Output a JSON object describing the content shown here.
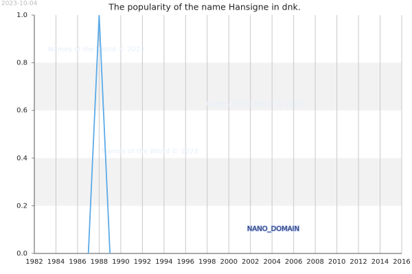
{
  "chart_data": {
    "type": "line",
    "title": "The popularity of the name Hansigne in dnk.",
    "date": "2023-10-04",
    "watermarks": [
      "Names of the World © 2023",
      "Names of the World © 2023",
      "Names of the World © 2023"
    ],
    "badge": "NANO_DOMAIN",
    "x": [
      1987,
      1988,
      1989
    ],
    "series": [
      {
        "name": "Hansigne",
        "color": "#5aaae8",
        "values": [
          0,
          1,
          0
        ]
      }
    ],
    "xlim": [
      1982,
      2016
    ],
    "xticks": [
      1982,
      1984,
      1986,
      1988,
      1990,
      1992,
      1994,
      1996,
      1998,
      2000,
      2002,
      2004,
      2006,
      2008,
      2010,
      2012,
      2014,
      2016
    ],
    "ylim": [
      0,
      1
    ],
    "yticks": [
      {
        "value": 0,
        "label": "0.0"
      },
      0.2,
      0.4,
      0.6,
      0.8,
      {
        "value": 1,
        "label": "1.0"
      }
    ],
    "grid": true
  }
}
